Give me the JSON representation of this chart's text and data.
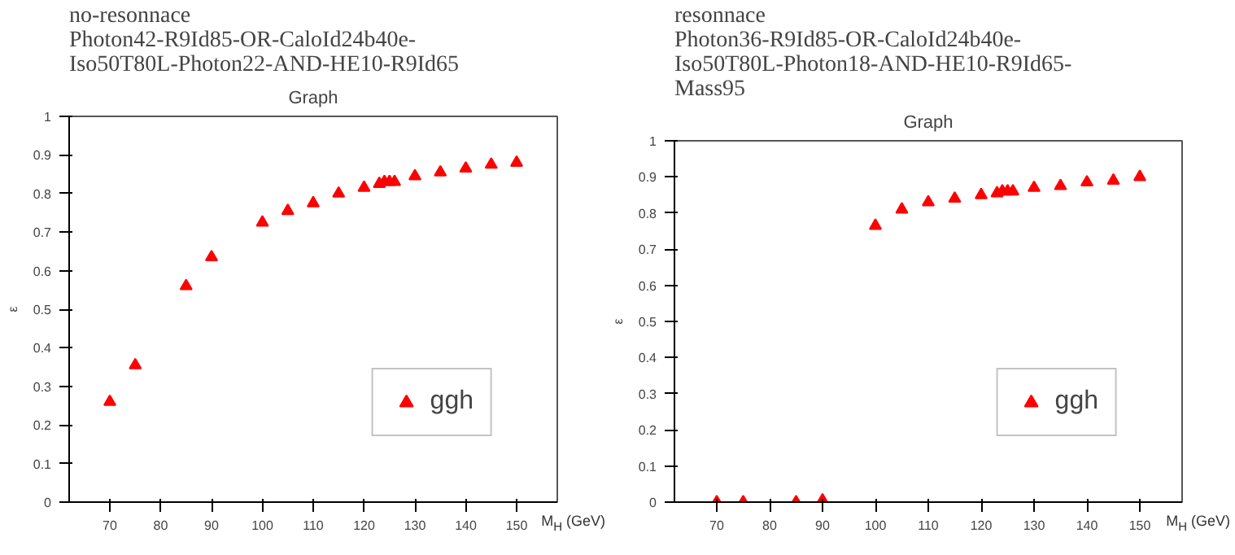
{
  "chart_data": [
    {
      "type": "scatter",
      "title": "no-resonnace\nPhoton42-R9Id85-OR-CaloId24b40e-\nIso50T80L-Photon22-AND-HE10-R9Id65",
      "subtitle": "Graph",
      "xlabel": "M$_{H}$ (GeV)",
      "ylabel": "ε",
      "x": [
        70,
        75,
        85,
        90,
        100,
        105,
        110,
        115,
        120,
        123,
        124,
        125,
        126,
        130,
        135,
        140,
        145,
        150
      ],
      "series": [
        {
          "name": "ggh",
          "color": "#ff0000",
          "values": [
            0.26,
            0.355,
            0.56,
            0.635,
            0.725,
            0.755,
            0.775,
            0.8,
            0.815,
            0.825,
            0.83,
            0.83,
            0.83,
            0.845,
            0.855,
            0.865,
            0.875,
            0.88
          ]
        }
      ],
      "xlim": [
        62,
        158
      ],
      "xticks": [
        70,
        80,
        90,
        100,
        110,
        120,
        130,
        140,
        150
      ],
      "ylim": [
        0,
        1
      ],
      "yticks": [
        0,
        0.1,
        0.2,
        0.3,
        0.4,
        0.5,
        0.6,
        0.7,
        0.8,
        0.9,
        1
      ],
      "marker": "triangle",
      "legend": "bottom right"
    },
    {
      "type": "scatter",
      "title": "resonnace\nPhoton36-R9Id85-OR-CaloId24b40e-\nIso50T80L-Photon18-AND-HE10-R9Id65-\nMass95",
      "subtitle": "Graph",
      "xlabel": "M$_{H}$ (GeV)",
      "ylabel": "ε",
      "x": [
        70,
        75,
        85,
        90,
        100,
        105,
        110,
        115,
        120,
        123,
        124,
        125,
        126,
        130,
        135,
        140,
        145,
        150
      ],
      "series": [
        {
          "name": "ggh",
          "color": "#ff0000",
          "values": [
            0,
            0,
            0,
            0.005,
            0.765,
            0.81,
            0.83,
            0.84,
            0.85,
            0.855,
            0.86,
            0.86,
            0.86,
            0.87,
            0.875,
            0.885,
            0.89,
            0.9
          ]
        }
      ],
      "xlim": [
        62,
        158
      ],
      "xticks": [
        70,
        80,
        90,
        100,
        110,
        120,
        130,
        140,
        150
      ],
      "ylim": [
        0,
        1
      ],
      "yticks": [
        0,
        0.1,
        0.2,
        0.3,
        0.4,
        0.5,
        0.6,
        0.7,
        0.8,
        0.9,
        1
      ],
      "marker": "triangle",
      "legend": "bottom right"
    }
  ]
}
